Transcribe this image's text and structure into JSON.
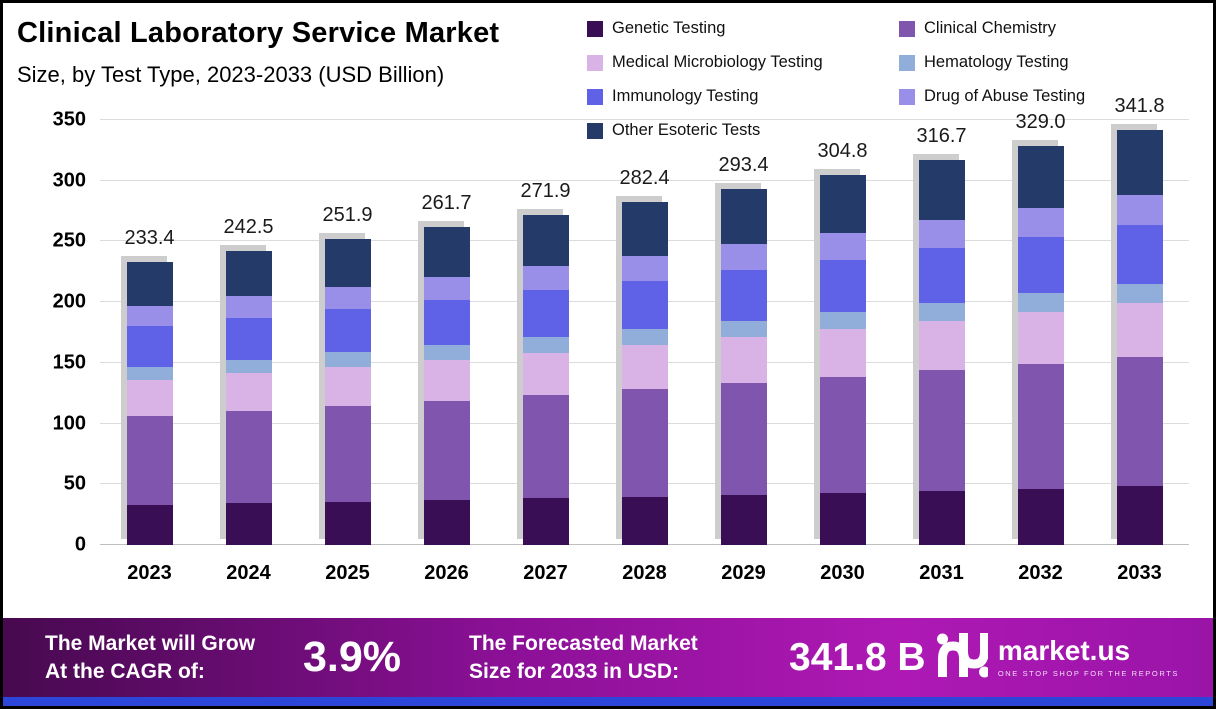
{
  "header": {
    "title": "Clinical Laboratory Service Market",
    "subtitle": "Size, by Test Type, 2023-2033 (USD Billion)"
  },
  "chart_data": {
    "type": "bar",
    "stacked": true,
    "title": "Clinical Laboratory Service Market Size, by Test Type, 2023-2033 (USD Billion)",
    "xlabel": "",
    "ylabel": "USD Billion",
    "ylim": [
      0,
      350
    ],
    "yticks": [
      0,
      50,
      100,
      150,
      200,
      250,
      300,
      350
    ],
    "grid": true,
    "legend_position": "top-right",
    "categories": [
      "2023",
      "2024",
      "2025",
      "2026",
      "2027",
      "2028",
      "2029",
      "2030",
      "2031",
      "2032",
      "2033"
    ],
    "totals": [
      233.4,
      242.5,
      251.9,
      261.7,
      271.9,
      282.4,
      293.4,
      304.8,
      316.7,
      329.0,
      341.8
    ],
    "series": [
      {
        "name": "Genetic Testing",
        "color": "#3a0e55",
        "values": [
          33.0,
          34.3,
          35.6,
          37.0,
          38.4,
          39.9,
          41.5,
          43.1,
          44.8,
          46.5,
          48.3
        ]
      },
      {
        "name": "Clinical Chemistry",
        "color": "#8055ad",
        "values": [
          73.0,
          75.8,
          78.8,
          81.9,
          85.0,
          88.3,
          91.8,
          95.3,
          99.1,
          102.9,
          106.9
        ]
      },
      {
        "name": "Medical Microbiology Testing",
        "color": "#d9b3e6",
        "values": [
          30.0,
          31.2,
          32.4,
          33.6,
          35.0,
          36.3,
          37.7,
          39.2,
          40.7,
          42.3,
          43.9
        ]
      },
      {
        "name": "Hematology Testing",
        "color": "#90aed9",
        "values": [
          11.0,
          11.4,
          11.9,
          12.3,
          12.8,
          13.3,
          13.8,
          14.4,
          14.9,
          15.5,
          16.1
        ]
      },
      {
        "name": "Immunology Testing",
        "color": "#5f62e6",
        "values": [
          33.0,
          34.3,
          35.6,
          37.0,
          38.4,
          39.9,
          41.5,
          43.1,
          44.8,
          46.5,
          48.3
        ]
      },
      {
        "name": "Drug of Abuse Testing",
        "color": "#9a8fe8",
        "values": [
          17.0,
          17.7,
          18.3,
          19.1,
          19.8,
          20.6,
          21.4,
          22.2,
          23.1,
          24.0,
          24.9
        ]
      },
      {
        "name": "Other Esoteric Tests",
        "color": "#243b69",
        "values": [
          36.4,
          37.8,
          39.3,
          40.8,
          42.4,
          44.1,
          45.8,
          47.6,
          49.4,
          51.3,
          53.4
        ]
      }
    ]
  },
  "footer": {
    "cagr_label_line1": "The Market will Grow",
    "cagr_label_line2": "At the CAGR of:",
    "cagr_value": "3.9%",
    "forecast_label_line1": "The Forecasted Market",
    "forecast_label_line2": "Size for 2033 in USD:",
    "forecast_value": "341.8 B",
    "brand_name": "market.us",
    "brand_tagline": "ONE STOP SHOP FOR THE REPORTS"
  },
  "theme": {
    "banner_gradient": [
      "#47094f",
      "#8c1097",
      "#ae19b4",
      "#9a14a8"
    ],
    "bottom_strip": "#2b46d9",
    "bar_shadow": "#cdcdcd",
    "gridline": "#dcdcdc"
  }
}
